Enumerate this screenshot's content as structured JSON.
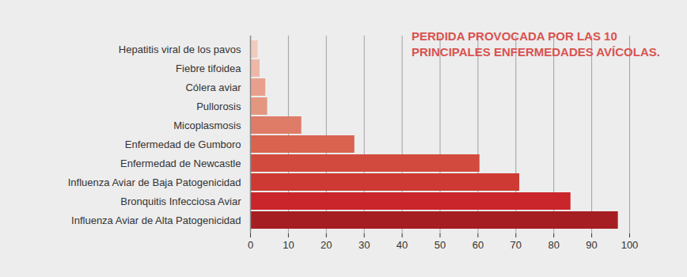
{
  "chart_data": {
    "type": "bar",
    "orientation": "horizontal",
    "title": "PERDIDA PROVOCADA POR LAS 10 PRINCIPALES ENFERMEDADES AVÍCOLAS.",
    "categories": [
      "Hepatitis viral de los pavos",
      "Fiebre tifoidea",
      "Cólera aviar",
      "Pullorosis",
      "Micoplasmosis",
      "Enfermedad de Gumboro",
      "Enfermedad de Newcastle",
      "Influenza Aviar de Baja Patogenicidad",
      "Bronquitis Infecciosa Aviar",
      "Influenza Aviar de Alta Patogenicidad"
    ],
    "values": [
      2,
      2.5,
      4,
      4.5,
      13.5,
      27.5,
      60.5,
      71,
      84.5,
      97
    ],
    "colors": [
      "#f2cbbf",
      "#eeb8a8",
      "#e8a08d",
      "#e39680",
      "#de7c67",
      "#d9634f",
      "#d24a3e",
      "#cc3a33",
      "#c9252a",
      "#a51e22"
    ],
    "xlim": [
      0,
      100
    ],
    "xticks": [
      0,
      10,
      20,
      30,
      40,
      50,
      60,
      70,
      80,
      90,
      100
    ],
    "grid": true
  }
}
